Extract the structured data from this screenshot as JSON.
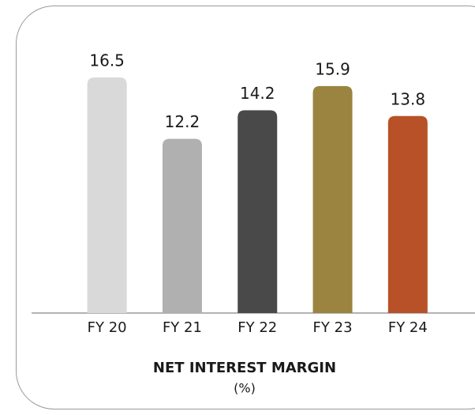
{
  "chart_data": {
    "type": "bar",
    "title": "NET INTEREST MARGIN",
    "subtitle": "(%)",
    "categories": [
      "FY 20",
      "FY 21",
      "FY 22",
      "FY 23",
      "FY 24"
    ],
    "values": [
      16.5,
      12.2,
      14.2,
      15.9,
      13.8
    ],
    "colors": [
      "#d9d9d9",
      "#b0b0b0",
      "#494949",
      "#9a8440",
      "#b85127"
    ]
  }
}
